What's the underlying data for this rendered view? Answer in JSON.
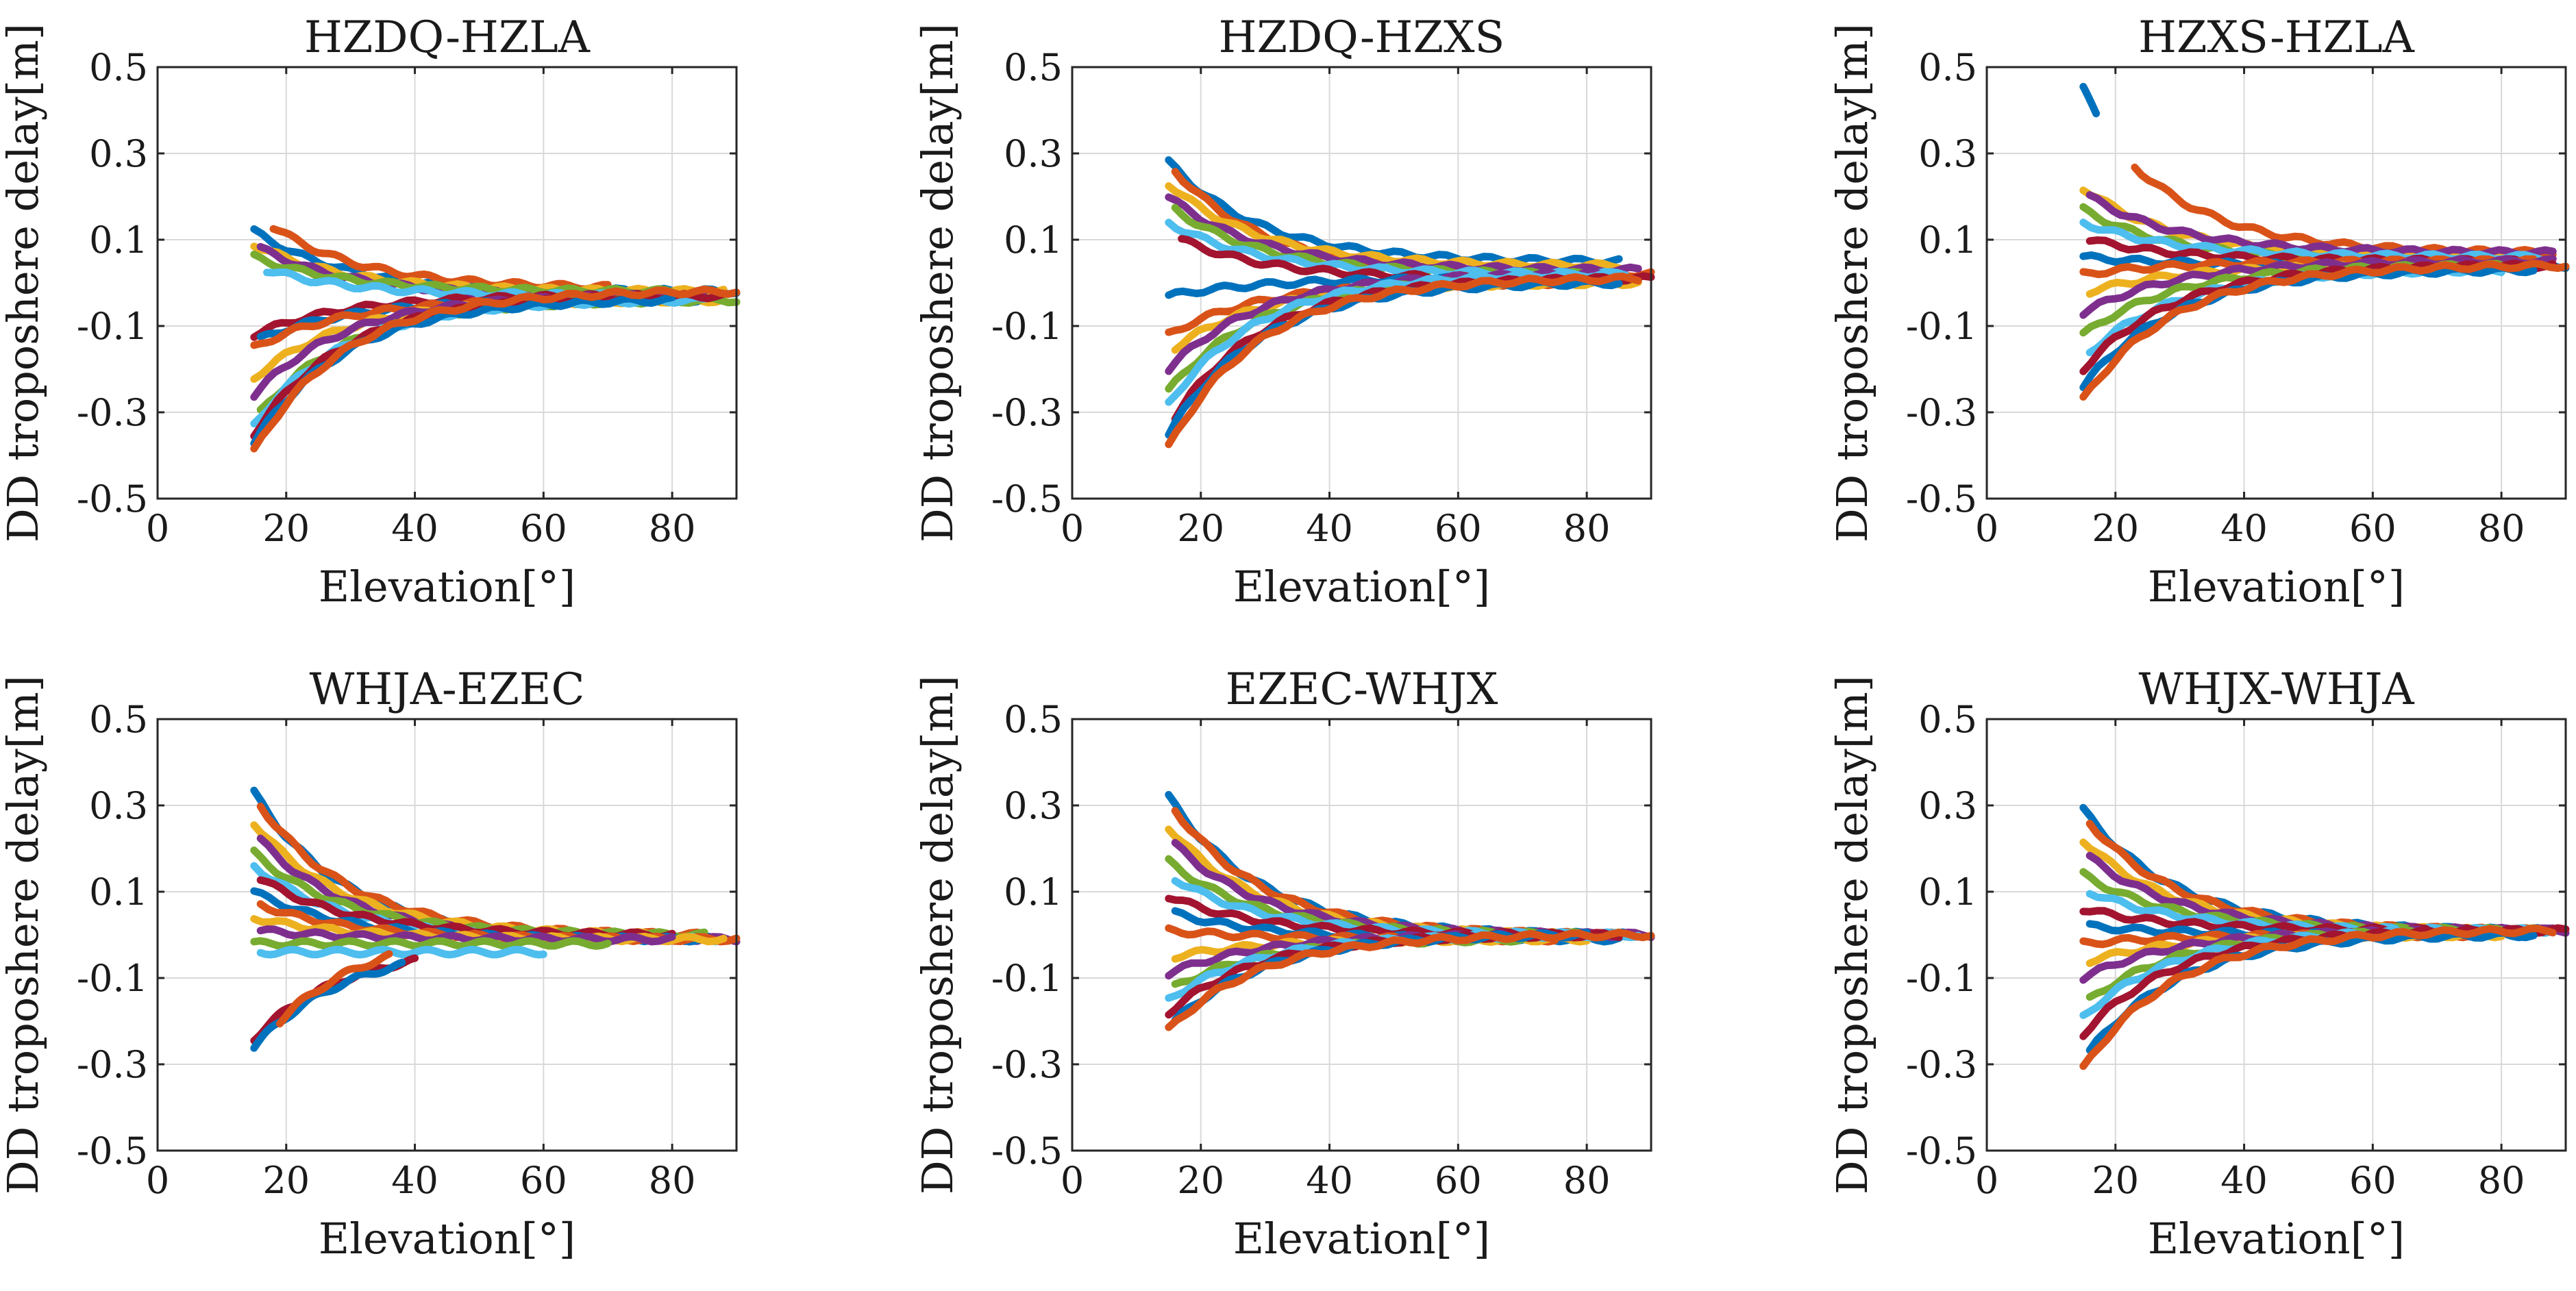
{
  "figure": {
    "colors": [
      "#0072BD",
      "#D95319",
      "#EDB120",
      "#7E2F8E",
      "#77AC30",
      "#4DBEEE",
      "#A2142F"
    ],
    "x_axis_label": "Elevation[°]",
    "y_axis_label": "DD troposhere delay[m]",
    "x_tick_labels": [
      "0",
      "20",
      "40",
      "60",
      "80"
    ],
    "y_tick_labels": [
      "0.5",
      "0.3",
      "0.1",
      "-0.1",
      "-0.3",
      "-0.5"
    ]
  },
  "chart_data": [
    {
      "type": "scatter",
      "title": "HZDQ-HZLA",
      "xlabel": "Elevation[°]",
      "ylabel": "DD troposhere delay[m]",
      "xlim": [
        0,
        90
      ],
      "ylim": [
        -0.5,
        0.5
      ],
      "xticks": [
        0,
        20,
        40,
        60,
        80
      ],
      "yticks": [
        -0.5,
        -0.3,
        -0.1,
        0.1,
        0.3,
        0.5
      ],
      "grid": true,
      "series": [
        {
          "start": [
            15,
            0.12
          ],
          "end": [
            90,
            -0.02
          ]
        },
        {
          "start": [
            18,
            0.13
          ],
          "end": [
            70,
            -0.01
          ]
        },
        {
          "start": [
            15,
            0.09
          ],
          "end": [
            88,
            -0.02
          ]
        },
        {
          "start": [
            16,
            0.08
          ],
          "end": [
            85,
            -0.03
          ]
        },
        {
          "start": [
            15,
            0.06
          ],
          "end": [
            80,
            -0.02
          ]
        },
        {
          "start": [
            17,
            0.03
          ],
          "end": [
            75,
            -0.03
          ]
        },
        {
          "start": [
            15,
            -0.12
          ],
          "end": [
            80,
            -0.03
          ]
        },
        {
          "start": [
            16,
            -0.13
          ],
          "end": [
            85,
            -0.04
          ]
        },
        {
          "start": [
            15,
            -0.15
          ],
          "end": [
            70,
            -0.04
          ]
        },
        {
          "start": [
            15,
            -0.22
          ],
          "end": [
            88,
            -0.04
          ]
        },
        {
          "start": [
            15,
            -0.26
          ],
          "end": [
            80,
            -0.03
          ]
        },
        {
          "start": [
            16,
            -0.3
          ],
          "end": [
            90,
            -0.04
          ]
        },
        {
          "start": [
            15,
            -0.33
          ],
          "end": [
            85,
            -0.04
          ]
        },
        {
          "start": [
            15,
            -0.35
          ],
          "end": [
            88,
            -0.03
          ]
        },
        {
          "start": [
            15,
            -0.37
          ],
          "end": [
            80,
            -0.04
          ]
        },
        {
          "start": [
            15,
            -0.39
          ],
          "end": [
            90,
            -0.02
          ]
        }
      ]
    },
    {
      "type": "scatter",
      "title": "HZDQ-HZXS",
      "xlabel": "Elevation[°]",
      "ylabel": "DD troposhere delay[m]",
      "xlim": [
        0,
        90
      ],
      "ylim": [
        -0.5,
        0.5
      ],
      "xticks": [
        0,
        20,
        40,
        60,
        80
      ],
      "yticks": [
        -0.5,
        -0.3,
        -0.1,
        0.1,
        0.3,
        0.5
      ],
      "grid": true,
      "series": [
        {
          "start": [
            15,
            0.28
          ],
          "end": [
            85,
            0.05
          ]
        },
        {
          "start": [
            16,
            0.26
          ],
          "end": [
            90,
            0.02
          ]
        },
        {
          "start": [
            15,
            0.23
          ],
          "end": [
            85,
            0.04
          ]
        },
        {
          "start": [
            15,
            0.2
          ],
          "end": [
            88,
            0.03
          ]
        },
        {
          "start": [
            16,
            0.17
          ],
          "end": [
            80,
            0.02
          ]
        },
        {
          "start": [
            15,
            0.14
          ],
          "end": [
            85,
            0.02
          ]
        },
        {
          "start": [
            17,
            0.1
          ],
          "end": [
            70,
            0.01
          ]
        },
        {
          "start": [
            15,
            -0.03
          ],
          "end": [
            80,
            0.01
          ]
        },
        {
          "start": [
            15,
            -0.12
          ],
          "end": [
            75,
            0.0
          ]
        },
        {
          "start": [
            16,
            -0.15
          ],
          "end": [
            88,
            0.0
          ]
        },
        {
          "start": [
            15,
            -0.2
          ],
          "end": [
            85,
            0.02
          ]
        },
        {
          "start": [
            15,
            -0.25
          ],
          "end": [
            80,
            0.01
          ]
        },
        {
          "start": [
            15,
            -0.28
          ],
          "end": [
            86,
            0.02
          ]
        },
        {
          "start": [
            16,
            -0.31
          ],
          "end": [
            90,
            0.01
          ]
        },
        {
          "start": [
            15,
            -0.35
          ],
          "end": [
            85,
            0.0
          ]
        },
        {
          "start": [
            15,
            -0.38
          ],
          "end": [
            88,
            0.01
          ]
        }
      ]
    },
    {
      "type": "scatter",
      "title": "HZXS-HZLA",
      "xlabel": "Elevation[°]",
      "ylabel": "DD troposhere delay[m]",
      "xlim": [
        0,
        90
      ],
      "ylim": [
        -0.5,
        0.5
      ],
      "xticks": [
        0,
        20,
        40,
        60,
        80
      ],
      "yticks": [
        -0.5,
        -0.3,
        -0.1,
        0.1,
        0.3,
        0.5
      ],
      "grid": true,
      "series": [
        {
          "start": [
            15,
            0.45
          ],
          "end": [
            17,
            0.39
          ]
        },
        {
          "start": [
            23,
            0.27
          ],
          "end": [
            88,
            0.07
          ]
        },
        {
          "start": [
            15,
            0.22
          ],
          "end": [
            85,
            0.06
          ]
        },
        {
          "start": [
            16,
            0.2
          ],
          "end": [
            88,
            0.07
          ]
        },
        {
          "start": [
            15,
            0.17
          ],
          "end": [
            80,
            0.05
          ]
        },
        {
          "start": [
            15,
            0.14
          ],
          "end": [
            86,
            0.06
          ]
        },
        {
          "start": [
            16,
            0.1
          ],
          "end": [
            88,
            0.05
          ]
        },
        {
          "start": [
            15,
            0.06
          ],
          "end": [
            90,
            0.04
          ]
        },
        {
          "start": [
            15,
            0.02
          ],
          "end": [
            85,
            0.05
          ]
        },
        {
          "start": [
            16,
            -0.02
          ],
          "end": [
            80,
            0.04
          ]
        },
        {
          "start": [
            15,
            -0.07
          ],
          "end": [
            88,
            0.05
          ]
        },
        {
          "start": [
            15,
            -0.12
          ],
          "end": [
            85,
            0.04
          ]
        },
        {
          "start": [
            16,
            -0.16
          ],
          "end": [
            80,
            0.03
          ]
        },
        {
          "start": [
            15,
            -0.2
          ],
          "end": [
            88,
            0.04
          ]
        },
        {
          "start": [
            15,
            -0.24
          ],
          "end": [
            85,
            0.03
          ]
        },
        {
          "start": [
            15,
            -0.27
          ],
          "end": [
            90,
            0.04
          ]
        }
      ]
    },
    {
      "type": "scatter",
      "title": "WHJA-EZEC",
      "xlabel": "Elevation[°]",
      "ylabel": "DD troposhere delay[m]",
      "xlim": [
        0,
        90
      ],
      "ylim": [
        -0.5,
        0.5
      ],
      "xticks": [
        0,
        20,
        40,
        60,
        80
      ],
      "yticks": [
        -0.5,
        -0.3,
        -0.1,
        0.1,
        0.3,
        0.5
      ],
      "grid": true,
      "series": [
        {
          "start": [
            15,
            0.33
          ],
          "end": [
            88,
            -0.01
          ]
        },
        {
          "start": [
            16,
            0.3
          ],
          "end": [
            85,
            0.0
          ]
        },
        {
          "start": [
            15,
            0.26
          ],
          "end": [
            80,
            0.0
          ]
        },
        {
          "start": [
            16,
            0.22
          ],
          "end": [
            90,
            -0.01
          ]
        },
        {
          "start": [
            15,
            0.19
          ],
          "end": [
            85,
            0.0
          ]
        },
        {
          "start": [
            15,
            0.16
          ],
          "end": [
            88,
            -0.01
          ]
        },
        {
          "start": [
            16,
            0.13
          ],
          "end": [
            80,
            0.0
          ]
        },
        {
          "start": [
            15,
            0.1
          ],
          "end": [
            85,
            -0.01
          ]
        },
        {
          "start": [
            16,
            0.07
          ],
          "end": [
            90,
            -0.01
          ]
        },
        {
          "start": [
            15,
            0.04
          ],
          "end": [
            88,
            -0.01
          ]
        },
        {
          "start": [
            16,
            0.01
          ],
          "end": [
            80,
            -0.01
          ]
        },
        {
          "start": [
            15,
            -0.02
          ],
          "end": [
            70,
            -0.02
          ]
        },
        {
          "start": [
            16,
            -0.04
          ],
          "end": [
            60,
            -0.04
          ]
        },
        {
          "start": [
            15,
            -0.24
          ],
          "end": [
            40,
            -0.06
          ]
        },
        {
          "start": [
            15,
            -0.26
          ],
          "end": [
            38,
            -0.07
          ]
        },
        {
          "start": [
            19,
            -0.2
          ],
          "end": [
            36,
            -0.05
          ]
        }
      ]
    },
    {
      "type": "scatter",
      "title": "EZEC-WHJX",
      "xlabel": "Elevation[°]",
      "ylabel": "DD troposhere delay[m]",
      "xlim": [
        0,
        90
      ],
      "ylim": [
        -0.5,
        0.5
      ],
      "xticks": [
        0,
        20,
        40,
        60,
        80
      ],
      "yticks": [
        -0.5,
        -0.3,
        -0.1,
        0.1,
        0.3,
        0.5
      ],
      "grid": true,
      "series": [
        {
          "start": [
            15,
            0.32
          ],
          "end": [
            88,
            0.0
          ]
        },
        {
          "start": [
            16,
            0.29
          ],
          "end": [
            85,
            0.0
          ]
        },
        {
          "start": [
            15,
            0.25
          ],
          "end": [
            80,
            0.0
          ]
        },
        {
          "start": [
            16,
            0.21
          ],
          "end": [
            90,
            0.0
          ]
        },
        {
          "start": [
            15,
            0.17
          ],
          "end": [
            85,
            0.0
          ]
        },
        {
          "start": [
            16,
            0.13
          ],
          "end": [
            88,
            0.0
          ]
        },
        {
          "start": [
            15,
            0.09
          ],
          "end": [
            80,
            0.0
          ]
        },
        {
          "start": [
            16,
            0.05
          ],
          "end": [
            85,
            -0.01
          ]
        },
        {
          "start": [
            15,
            0.01
          ],
          "end": [
            75,
            -0.01
          ]
        },
        {
          "start": [
            16,
            -0.05
          ],
          "end": [
            80,
            -0.01
          ]
        },
        {
          "start": [
            15,
            -0.09
          ],
          "end": [
            85,
            0.0
          ]
        },
        {
          "start": [
            16,
            -0.12
          ],
          "end": [
            70,
            -0.01
          ]
        },
        {
          "start": [
            15,
            -0.15
          ],
          "end": [
            88,
            0.0
          ]
        },
        {
          "start": [
            15,
            -0.18
          ],
          "end": [
            85,
            0.0
          ]
        },
        {
          "start": [
            16,
            -0.2
          ],
          "end": [
            80,
            0.0
          ]
        },
        {
          "start": [
            15,
            -0.22
          ],
          "end": [
            90,
            0.0
          ]
        }
      ]
    },
    {
      "type": "scatter",
      "title": "WHJX-WHJA",
      "xlabel": "Elevation[°]",
      "ylabel": "DD troposhere delay[m]",
      "xlim": [
        0,
        90
      ],
      "ylim": [
        -0.5,
        0.5
      ],
      "xticks": [
        0,
        20,
        40,
        60,
        80
      ],
      "yticks": [
        -0.5,
        -0.3,
        -0.1,
        0.1,
        0.3,
        0.5
      ],
      "grid": true,
      "series": [
        {
          "start": [
            15,
            0.29
          ],
          "end": [
            88,
            0.01
          ]
        },
        {
          "start": [
            16,
            0.26
          ],
          "end": [
            85,
            0.01
          ]
        },
        {
          "start": [
            15,
            0.22
          ],
          "end": [
            80,
            0.01
          ]
        },
        {
          "start": [
            16,
            0.18
          ],
          "end": [
            90,
            0.01
          ]
        },
        {
          "start": [
            15,
            0.14
          ],
          "end": [
            85,
            0.01
          ]
        },
        {
          "start": [
            16,
            0.1
          ],
          "end": [
            88,
            0.01
          ]
        },
        {
          "start": [
            15,
            0.06
          ],
          "end": [
            80,
            0.01
          ]
        },
        {
          "start": [
            16,
            0.02
          ],
          "end": [
            85,
            0.0
          ]
        },
        {
          "start": [
            15,
            -0.02
          ],
          "end": [
            75,
            0.0
          ]
        },
        {
          "start": [
            16,
            -0.06
          ],
          "end": [
            80,
            0.0
          ]
        },
        {
          "start": [
            15,
            -0.1
          ],
          "end": [
            88,
            0.01
          ]
        },
        {
          "start": [
            16,
            -0.15
          ],
          "end": [
            85,
            0.01
          ]
        },
        {
          "start": [
            15,
            -0.19
          ],
          "end": [
            80,
            0.01
          ]
        },
        {
          "start": [
            15,
            -0.23
          ],
          "end": [
            90,
            0.01
          ]
        },
        {
          "start": [
            16,
            -0.27
          ],
          "end": [
            85,
            0.0
          ]
        },
        {
          "start": [
            15,
            -0.31
          ],
          "end": [
            88,
            0.01
          ]
        }
      ]
    }
  ]
}
